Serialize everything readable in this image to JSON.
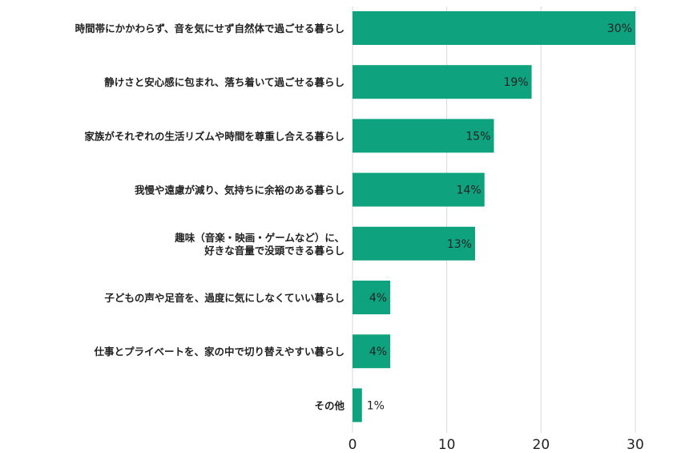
{
  "chart_data": {
    "type": "bar",
    "orientation": "horizontal",
    "categories": [
      [
        "時間帯にかかわらず、音を気にせず自然体で過ごせる暮らし"
      ],
      [
        "静けさと安心感に包まれ、落ち着いて過ごせる暮らし"
      ],
      [
        "家族がそれぞれの生活リズムや時間を尊重し合える暮らし"
      ],
      [
        "我慢や遠慮が減り、気持ちに余裕のある暮らし"
      ],
      [
        "趣味（音楽・映画・ゲームなど）に、",
        "好きな音量で没頭できる暮らし"
      ],
      [
        "子どもの声や足音を、過度に気にしなくていい暮らし"
      ],
      [
        "仕事とプライベートを、家の中で切り替えやすい暮らし"
      ],
      [
        "その他"
      ]
    ],
    "values": [
      30,
      19,
      15,
      14,
      13,
      4,
      4,
      1
    ],
    "value_labels": [
      "30%",
      "19%",
      "15%",
      "14%",
      "13%",
      "4%",
      "4%",
      "1%"
    ],
    "xlim": [
      0,
      30
    ],
    "xticks": [
      "0",
      "10",
      "20",
      "30"
    ],
    "grid": true,
    "bar_color": "#0ea27f",
    "grid_color": "#d9d9d9"
  }
}
